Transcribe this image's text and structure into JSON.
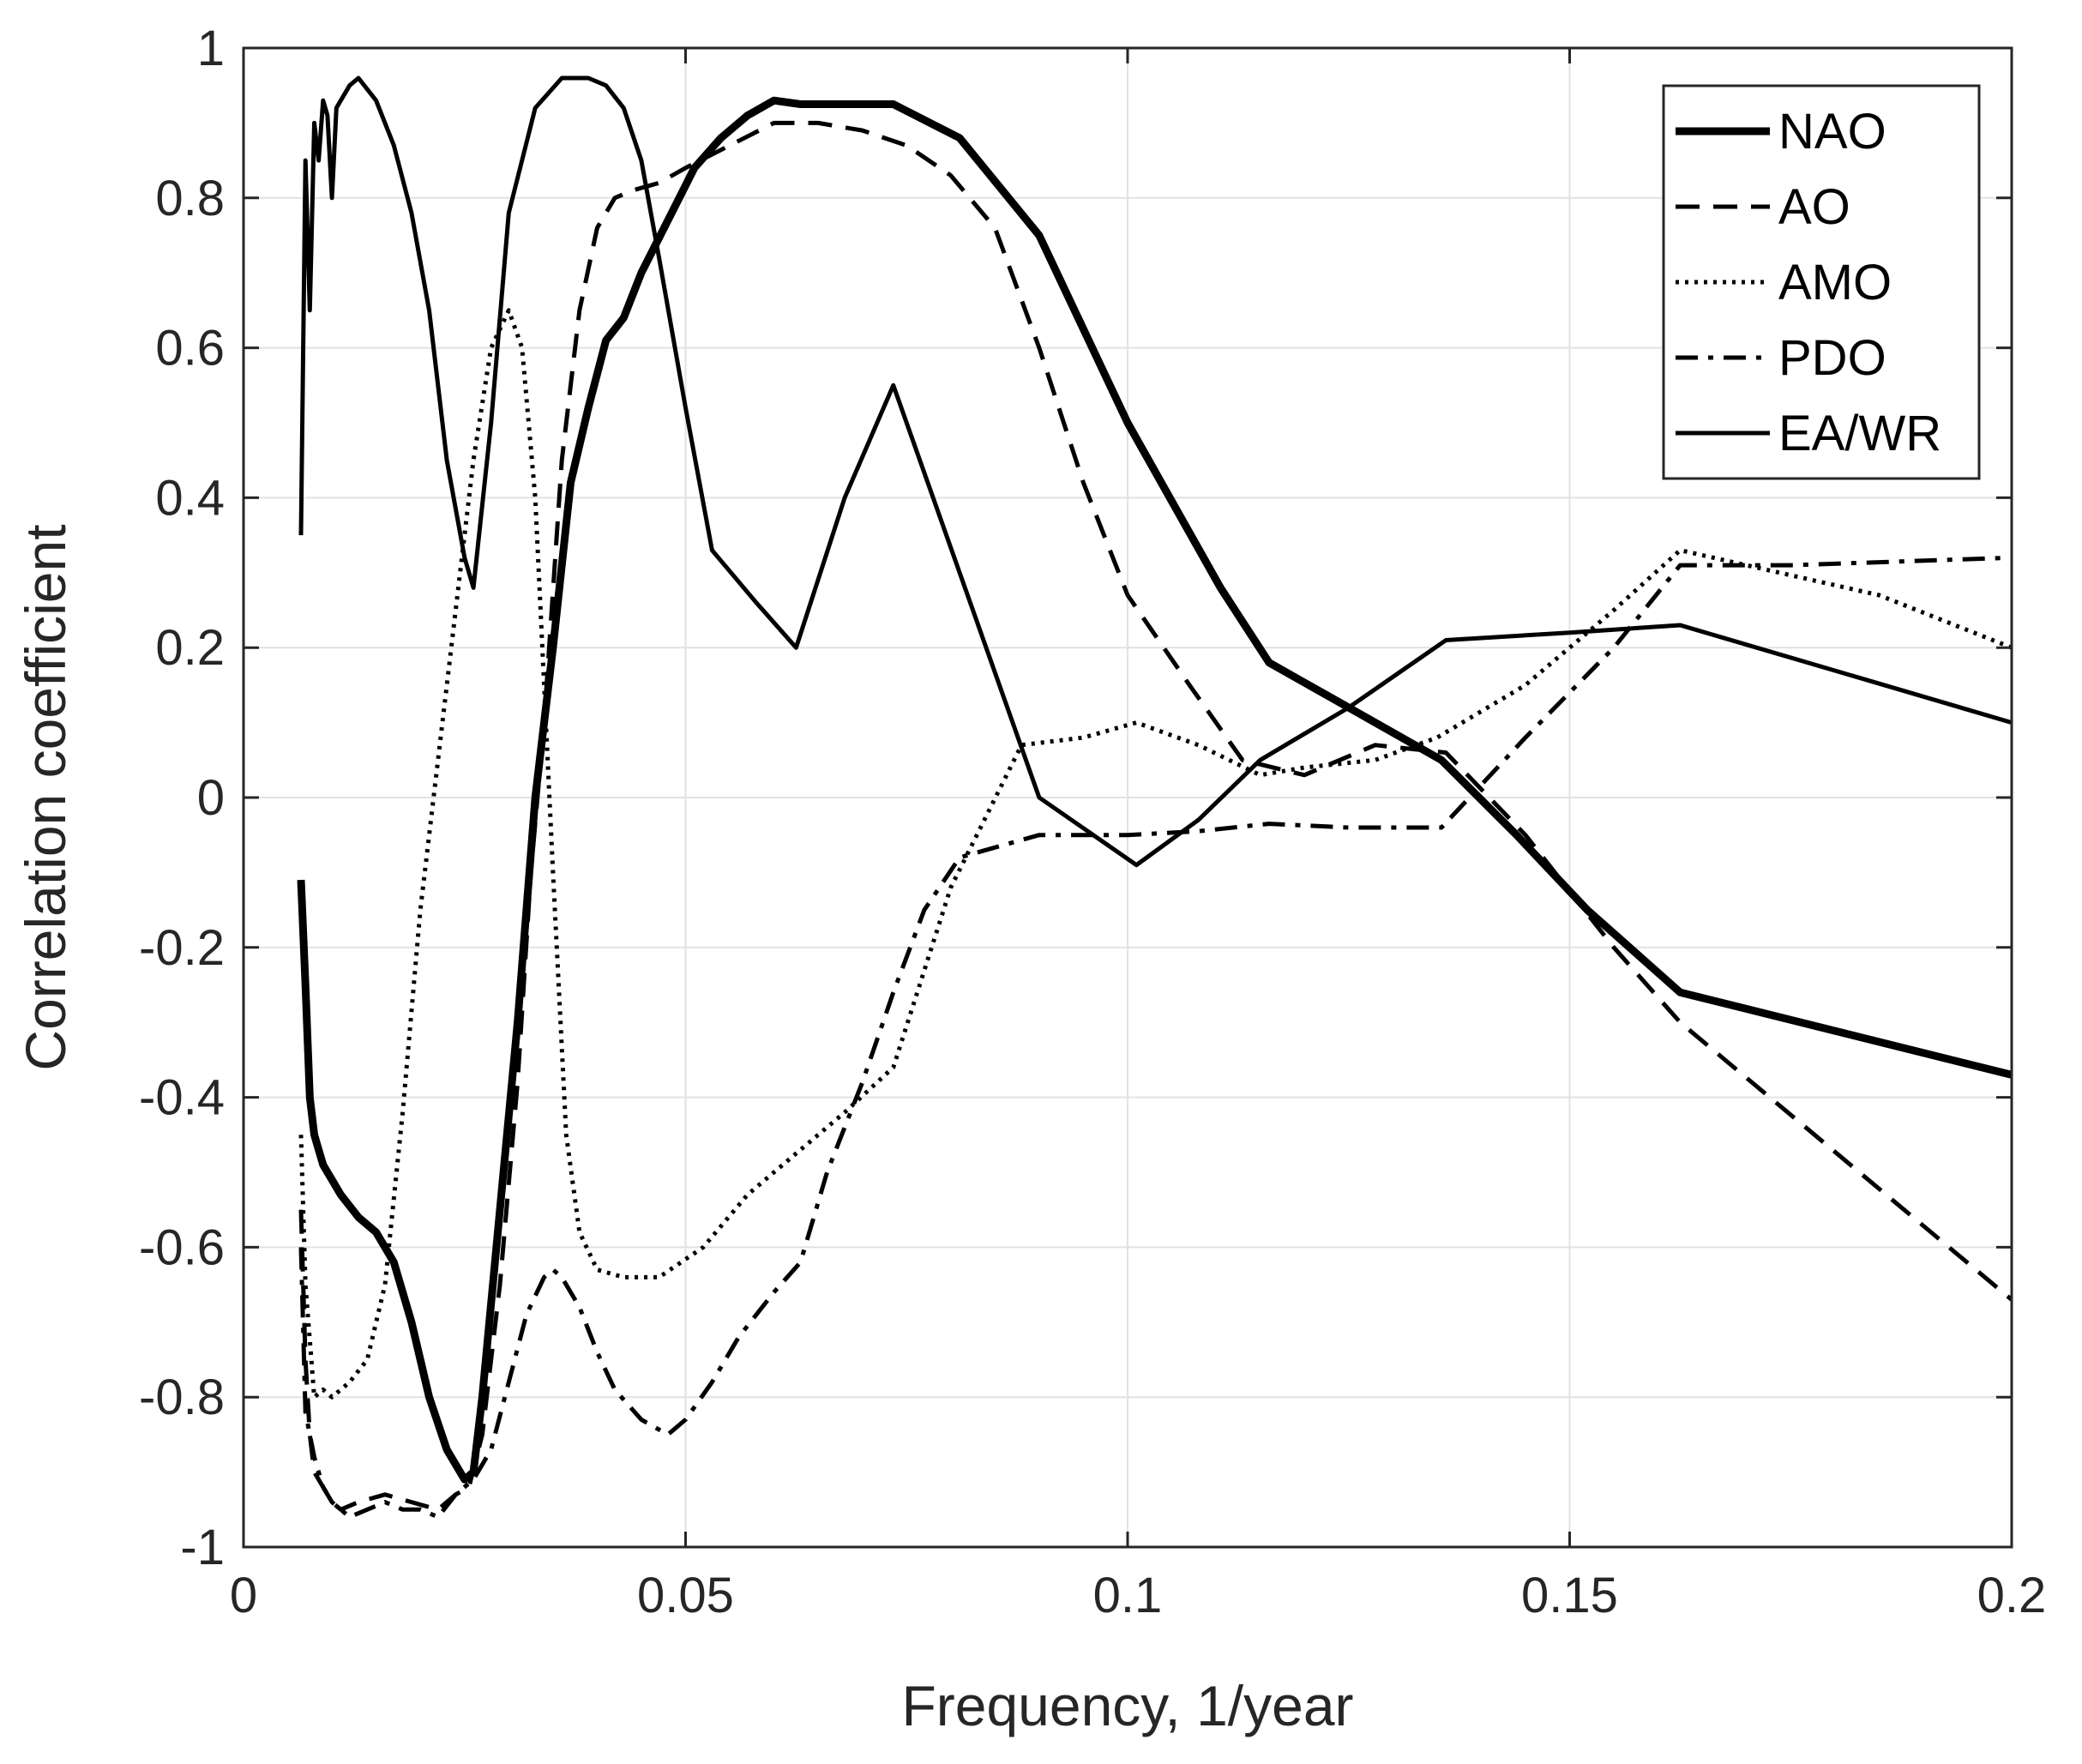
{
  "chart_data": {
    "type": "line",
    "title": "",
    "xlabel": "Frequency, 1/year",
    "ylabel": "Correlation coefficient",
    "xlim": [
      0,
      0.2
    ],
    "ylim": [
      -1,
      1
    ],
    "grid": true,
    "legend_position": "top-right",
    "xticks": [
      0,
      0.05,
      0.1,
      0.15,
      0.2
    ],
    "xtick_labels": [
      "0",
      "0.05",
      "0.1",
      "0.15",
      "0.2"
    ],
    "yticks": [
      -1,
      -0.8,
      -0.6,
      -0.4,
      -0.2,
      0,
      0.2,
      0.4,
      0.6,
      0.8,
      1
    ],
    "ytick_labels": [
      "-1",
      "-0.8",
      "-0.6",
      "-0.4",
      "-0.2",
      "0",
      "0.2",
      "0.4",
      "0.6",
      "0.8",
      "1"
    ],
    "series": [
      {
        "name": "NAO",
        "style": "solid-thick",
        "x": [
          0.0065,
          0.007,
          0.0075,
          0.008,
          0.0085,
          0.009,
          0.0095,
          0.01,
          0.011,
          0.013,
          0.015,
          0.017,
          0.019,
          0.021,
          0.023,
          0.025,
          0.026,
          0.027,
          0.029,
          0.031,
          0.033,
          0.035,
          0.037,
          0.039,
          0.041,
          0.043,
          0.045,
          0.048,
          0.051,
          0.054,
          0.057,
          0.06,
          0.063,
          0.068,
          0.0735,
          0.081,
          0.09,
          0.1,
          0.1105,
          0.116,
          0.125,
          0.1355,
          0.144,
          0.152,
          0.1625,
          0.2
        ],
        "values": [
          -0.11,
          -0.25,
          -0.4,
          -0.45,
          -0.47,
          -0.49,
          -0.5,
          -0.51,
          -0.53,
          -0.56,
          -0.58,
          -0.62,
          -0.7,
          -0.8,
          -0.87,
          -0.91,
          -0.9,
          -0.8,
          -0.55,
          -0.3,
          0.0,
          0.2,
          0.42,
          0.52,
          0.61,
          0.64,
          0.7,
          0.77,
          0.84,
          0.88,
          0.91,
          0.93,
          0.925,
          0.925,
          0.925,
          0.88,
          0.75,
          0.5,
          0.28,
          0.18,
          0.12,
          0.05,
          -0.05,
          -0.15,
          -0.26,
          -0.37
        ]
      },
      {
        "name": "AO",
        "style": "dashed",
        "x": [
          0.0065,
          0.007,
          0.0075,
          0.008,
          0.009,
          0.01,
          0.011,
          0.013,
          0.016,
          0.019,
          0.022,
          0.024,
          0.0255,
          0.027,
          0.029,
          0.031,
          0.0325,
          0.034,
          0.036,
          0.038,
          0.04,
          0.042,
          0.044,
          0.047,
          0.05,
          0.055,
          0.06,
          0.065,
          0.07,
          0.075,
          0.08,
          0.085,
          0.09,
          0.095,
          0.1,
          0.107,
          0.113,
          0.12,
          0.128,
          0.136,
          0.145,
          0.155,
          0.1625,
          0.2
        ],
        "values": [
          -0.55,
          -0.75,
          -0.85,
          -0.9,
          -0.92,
          -0.94,
          -0.95,
          -0.94,
          -0.93,
          -0.94,
          -0.95,
          -0.93,
          -0.92,
          -0.85,
          -0.65,
          -0.38,
          -0.1,
          0.1,
          0.45,
          0.65,
          0.76,
          0.8,
          0.81,
          0.82,
          0.84,
          0.87,
          0.9,
          0.9,
          0.89,
          0.87,
          0.83,
          0.76,
          0.6,
          0.42,
          0.27,
          0.15,
          0.05,
          0.03,
          0.07,
          0.06,
          -0.05,
          -0.2,
          -0.3,
          -0.67
        ]
      },
      {
        "name": "AMO",
        "style": "dotted",
        "x": [
          0.0065,
          0.007,
          0.008,
          0.009,
          0.01,
          0.012,
          0.014,
          0.016,
          0.018,
          0.02,
          0.022,
          0.024,
          0.026,
          0.028,
          0.03,
          0.0315,
          0.033,
          0.035,
          0.0365,
          0.038,
          0.04,
          0.043,
          0.047,
          0.052,
          0.057,
          0.062,
          0.068,
          0.0735,
          0.08,
          0.088,
          0.095,
          0.101,
          0.108,
          0.115,
          0.12,
          0.128,
          0.135,
          0.145,
          0.155,
          0.1625,
          0.17,
          0.185,
          0.2
        ],
        "values": [
          -0.45,
          -0.65,
          -0.8,
          -0.79,
          -0.8,
          -0.78,
          -0.75,
          -0.65,
          -0.42,
          -0.15,
          0.05,
          0.25,
          0.45,
          0.6,
          0.65,
          0.6,
          0.4,
          -0.1,
          -0.45,
          -0.58,
          -0.63,
          -0.64,
          -0.64,
          -0.6,
          -0.53,
          -0.48,
          -0.42,
          -0.36,
          -0.12,
          0.07,
          0.08,
          0.1,
          0.07,
          0.03,
          0.04,
          0.05,
          0.08,
          0.15,
          0.25,
          0.33,
          0.31,
          0.27,
          0.2
        ]
      },
      {
        "name": "PDO",
        "style": "dashdot",
        "x": [
          0.0065,
          0.007,
          0.008,
          0.009,
          0.01,
          0.011,
          0.012,
          0.014,
          0.016,
          0.018,
          0.02,
          0.022,
          0.024,
          0.026,
          0.028,
          0.03,
          0.032,
          0.034,
          0.035,
          0.036,
          0.038,
          0.04,
          0.042,
          0.045,
          0.048,
          0.05,
          0.053,
          0.056,
          0.06,
          0.063,
          0.066,
          0.07,
          0.0735,
          0.077,
          0.081,
          0.09,
          0.1,
          0.108,
          0.116,
          0.125,
          0.1355,
          0.145,
          0.155,
          0.1625,
          0.175,
          0.2
        ],
        "values": [
          -0.6,
          -0.82,
          -0.88,
          -0.92,
          -0.94,
          -0.95,
          -0.96,
          -0.95,
          -0.94,
          -0.95,
          -0.95,
          -0.96,
          -0.93,
          -0.91,
          -0.87,
          -0.78,
          -0.69,
          -0.64,
          -0.63,
          -0.64,
          -0.68,
          -0.74,
          -0.79,
          -0.83,
          -0.85,
          -0.83,
          -0.78,
          -0.72,
          -0.66,
          -0.62,
          -0.5,
          -0.38,
          -0.26,
          -0.15,
          -0.08,
          -0.05,
          -0.05,
          -0.045,
          -0.035,
          -0.04,
          -0.04,
          0.08,
          0.2,
          0.31,
          0.31,
          0.32
        ]
      },
      {
        "name": "EA/WR",
        "style": "solid",
        "x": [
          0.0065,
          0.007,
          0.0075,
          0.008,
          0.0085,
          0.009,
          0.0095,
          0.01,
          0.0105,
          0.011,
          0.012,
          0.013,
          0.015,
          0.017,
          0.019,
          0.021,
          0.023,
          0.025,
          0.026,
          0.028,
          0.03,
          0.033,
          0.036,
          0.039,
          0.041,
          0.043,
          0.045,
          0.047,
          0.05,
          0.053,
          0.058,
          0.0625,
          0.068,
          0.0735,
          0.081,
          0.09,
          0.101,
          0.108,
          0.115,
          0.125,
          0.136,
          0.15,
          0.1625,
          0.2
        ],
        "values": [
          0.35,
          0.85,
          0.65,
          0.9,
          0.85,
          0.93,
          0.91,
          0.8,
          0.92,
          0.93,
          0.95,
          0.96,
          0.93,
          0.87,
          0.78,
          0.65,
          0.45,
          0.32,
          0.28,
          0.5,
          0.78,
          0.92,
          0.96,
          0.96,
          0.95,
          0.92,
          0.85,
          0.72,
          0.52,
          0.33,
          0.26,
          0.2,
          0.4,
          0.55,
          0.3,
          0.0,
          -0.09,
          -0.03,
          0.05,
          0.12,
          0.21,
          0.22,
          0.23,
          0.1
        ]
      }
    ]
  }
}
